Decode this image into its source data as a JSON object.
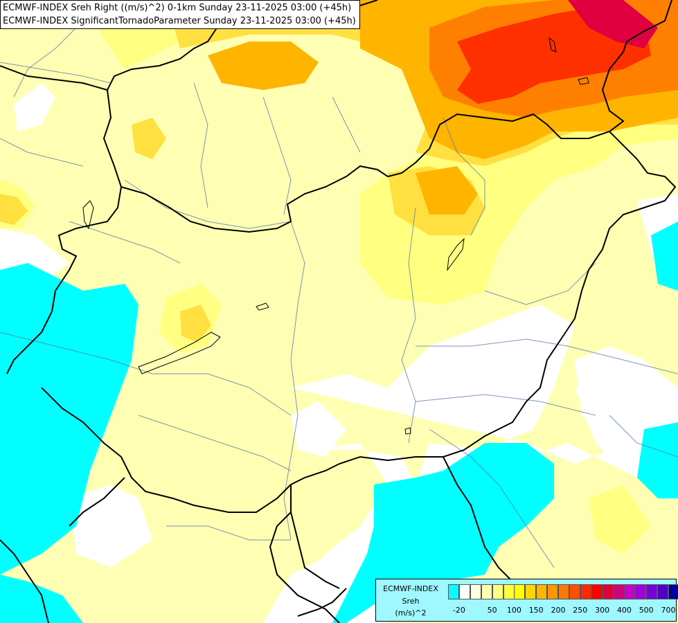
{
  "title": {
    "line1": "ECMWF-INDEX Sreh Right ((m/s)^2) 0-1km Sunday 23-11-2025 03:00 (+45h)",
    "line2": "ECMWF-INDEX SignificantTornadoParameter Sunday 23-11-2025 03:00 (+45h)"
  },
  "legend": {
    "line1": "ECMWF-INDEX",
    "line2": "Sreh",
    "line3": "(m/s)^2",
    "colors": [
      "#00ffff",
      "#ffffff",
      "#ffffe0",
      "#ffffb0",
      "#ffff80",
      "#ffff40",
      "#ffff00",
      "#ffd700",
      "#ffb400",
      "#ff9600",
      "#ff7800",
      "#ff5000",
      "#ff2800",
      "#ff0000",
      "#e0003c",
      "#d2007a",
      "#c800c8",
      "#a000dc",
      "#7800dc",
      "#5000c8",
      "#0000a0"
    ],
    "ticks": [
      "-20",
      "50",
      "100",
      "150",
      "200",
      "250",
      "300",
      "400",
      "500",
      "700"
    ]
  },
  "colors": {
    "cyan": "#00ffff",
    "white": "#ffffff",
    "pale_yellow": "#ffffb4",
    "yellow": "#ffff80",
    "gold": "#ffe040",
    "orange": "#ffb400",
    "dark_orange": "#ff8000",
    "red": "#ff3000",
    "crimson": "#e00040"
  }
}
